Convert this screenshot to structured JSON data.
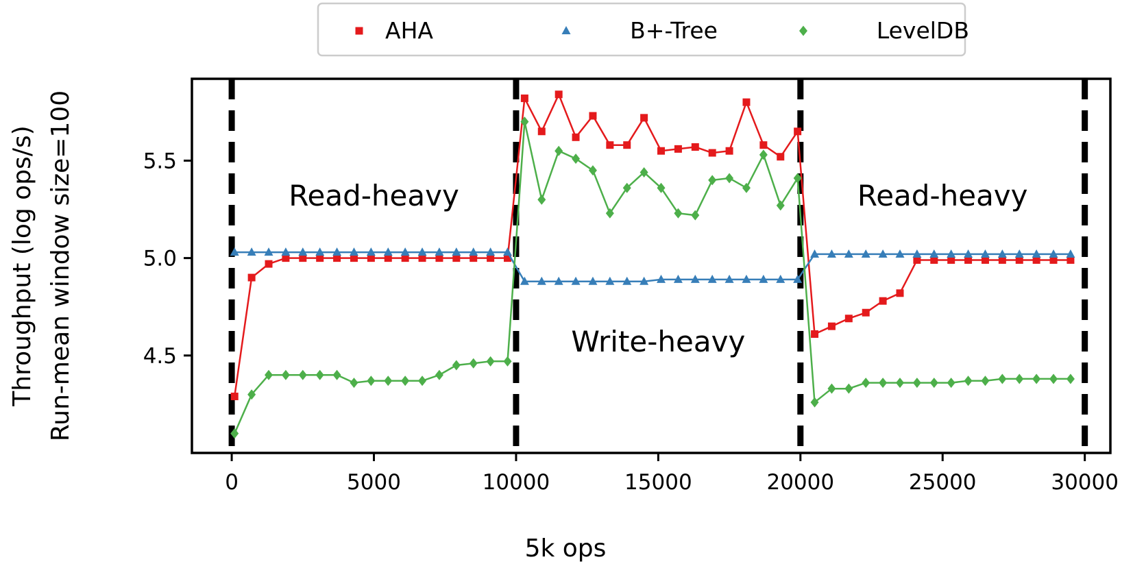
{
  "chart_data": {
    "type": "line",
    "title": "",
    "xlabel": "5k ops",
    "ylabel_lines": [
      "Throughput (log ops/s)",
      "Run-mean window size=100"
    ],
    "xlim": [
      -1400,
      30900
    ],
    "ylim": [
      4.0,
      5.92
    ],
    "xticks": [
      0,
      5000,
      10000,
      15000,
      20000,
      25000,
      30000
    ],
    "xtick_labels": [
      "0",
      "5000",
      "10000",
      "15000",
      "20000",
      "25000",
      "30000"
    ],
    "yticks": [
      4.5,
      5.0,
      5.5
    ],
    "ytick_labels": [
      "4.5",
      "5.0",
      "5.5"
    ],
    "grid": false,
    "legend_position": "top-center",
    "phase_boundaries": [
      0,
      10000,
      20000,
      30000
    ],
    "annotations": [
      {
        "text": "Read-heavy",
        "x": 5000,
        "y": 5.27
      },
      {
        "text": "Write-heavy",
        "x": 15000,
        "y": 4.52
      },
      {
        "text": "Read-heavy",
        "x": 25000,
        "y": 5.27
      }
    ],
    "series": [
      {
        "name": "AHA",
        "color": "#e41a1c",
        "marker": "square",
        "x": [
          100,
          700,
          1300,
          1900,
          2500,
          3100,
          3700,
          4300,
          4900,
          5500,
          6100,
          6700,
          7300,
          7900,
          8500,
          9100,
          9700,
          10300,
          10900,
          11500,
          12100,
          12700,
          13300,
          13900,
          14500,
          15100,
          15700,
          16300,
          16900,
          17500,
          18100,
          18700,
          19300,
          19900,
          20500,
          21100,
          21700,
          22300,
          22900,
          23500,
          24100,
          24700,
          25300,
          25900,
          26500,
          27100,
          27700,
          28300,
          28900,
          29500
        ],
        "y": [
          4.29,
          4.9,
          4.97,
          5.0,
          5.0,
          5.0,
          5.0,
          5.0,
          5.0,
          5.0,
          5.0,
          5.0,
          5.0,
          5.0,
          5.0,
          5.0,
          5.0,
          5.82,
          5.65,
          5.84,
          5.62,
          5.73,
          5.58,
          5.58,
          5.72,
          5.55,
          5.56,
          5.57,
          5.54,
          5.55,
          5.8,
          5.58,
          5.52,
          5.65,
          4.61,
          4.65,
          4.69,
          4.72,
          4.78,
          4.82,
          4.99,
          4.99,
          4.99,
          4.99,
          4.99,
          4.99,
          4.99,
          4.99,
          4.99,
          4.99
        ]
      },
      {
        "name": "B+-Tree",
        "color": "#377eb8",
        "marker": "triangle",
        "x": [
          100,
          700,
          1300,
          1900,
          2500,
          3100,
          3700,
          4300,
          4900,
          5500,
          6100,
          6700,
          7300,
          7900,
          8500,
          9100,
          9700,
          10300,
          10900,
          11500,
          12100,
          12700,
          13300,
          13900,
          14500,
          15100,
          15700,
          16300,
          16900,
          17500,
          18100,
          18700,
          19300,
          19900,
          20500,
          21100,
          21700,
          22300,
          22900,
          23500,
          24100,
          24700,
          25300,
          25900,
          26500,
          27100,
          27700,
          28300,
          28900,
          29500
        ],
        "y": [
          5.03,
          5.03,
          5.03,
          5.03,
          5.03,
          5.03,
          5.03,
          5.03,
          5.03,
          5.03,
          5.03,
          5.03,
          5.03,
          5.03,
          5.03,
          5.03,
          5.03,
          4.88,
          4.88,
          4.88,
          4.88,
          4.88,
          4.88,
          4.88,
          4.88,
          4.89,
          4.89,
          4.89,
          4.89,
          4.89,
          4.89,
          4.89,
          4.89,
          4.89,
          5.02,
          5.02,
          5.02,
          5.02,
          5.02,
          5.02,
          5.02,
          5.02,
          5.02,
          5.02,
          5.02,
          5.02,
          5.02,
          5.02,
          5.02,
          5.02
        ]
      },
      {
        "name": "LevelDB",
        "color": "#4daf4a",
        "marker": "diamond",
        "x": [
          100,
          700,
          1300,
          1900,
          2500,
          3100,
          3700,
          4300,
          4900,
          5500,
          6100,
          6700,
          7300,
          7900,
          8500,
          9100,
          9700,
          10300,
          10900,
          11500,
          12100,
          12700,
          13300,
          13900,
          14500,
          15100,
          15700,
          16300,
          16900,
          17500,
          18100,
          18700,
          19300,
          19900,
          20500,
          21100,
          21700,
          22300,
          22900,
          23500,
          24100,
          24700,
          25300,
          25900,
          26500,
          27100,
          27700,
          28300,
          28900,
          29500
        ],
        "y": [
          4.1,
          4.3,
          4.4,
          4.4,
          4.4,
          4.4,
          4.4,
          4.36,
          4.37,
          4.37,
          4.37,
          4.37,
          4.4,
          4.45,
          4.46,
          4.47,
          4.47,
          5.7,
          5.3,
          5.55,
          5.51,
          5.45,
          5.23,
          5.36,
          5.44,
          5.36,
          5.23,
          5.22,
          5.4,
          5.41,
          5.36,
          5.53,
          5.27,
          5.41,
          4.26,
          4.33,
          4.33,
          4.36,
          4.36,
          4.36,
          4.36,
          4.36,
          4.36,
          4.37,
          4.37,
          4.38,
          4.38,
          4.38,
          4.38,
          4.38
        ]
      }
    ]
  }
}
